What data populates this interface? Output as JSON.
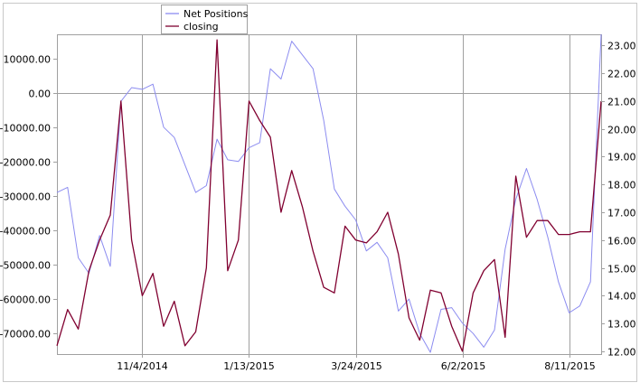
{
  "chart_data": {
    "type": "line",
    "title": "",
    "legend": {
      "placement": "top-left",
      "entries": [
        "Net Positions",
        "closing"
      ]
    },
    "colors": {
      "background": "#ffffff",
      "frame": "#a0a0a0",
      "grid": "#a0a0a0",
      "net_positions": "#8c8cf0",
      "closing": "#800030",
      "text": "#000000"
    },
    "grid": {
      "vertical": true,
      "horizontal_at_zero": true
    },
    "x_axis": {
      "type": "date",
      "range": [
        "2014-09-09",
        "2015-09-01"
      ],
      "ticks": [
        "11/4/2014",
        "1/13/2015",
        "3/24/2015",
        "6/2/2015",
        "8/11/2015"
      ],
      "tick_dates": [
        "2014-11-04",
        "2015-01-13",
        "2015-03-24",
        "2015-06-02",
        "2015-08-11"
      ]
    },
    "y_left": {
      "range": [
        -76000,
        17000
      ],
      "ticks": [
        -70000,
        -60000,
        -50000,
        -40000,
        -30000,
        -20000,
        -10000,
        0,
        10000
      ],
      "tick_labels": [
        "-70000.00",
        "-60000.00",
        "-50000.00",
        "-40000.00",
        "-30000.00",
        "-20000.00",
        "-10000.00",
        "0.00",
        "10000.00"
      ]
    },
    "y_right": {
      "range": [
        11.9,
        23.4
      ],
      "ticks": [
        12,
        13,
        14,
        15,
        16,
        17,
        18,
        19,
        20,
        21,
        22,
        23
      ],
      "tick_labels": [
        "12.00",
        "13.00",
        "14.00",
        "15.00",
        "16.00",
        "17.00",
        "18.00",
        "19.00",
        "20.00",
        "21.00",
        "22.00",
        "23.00"
      ]
    },
    "x": [
      "2014-09-09",
      "2014-09-16",
      "2014-09-23",
      "2014-09-30",
      "2014-10-07",
      "2014-10-14",
      "2014-10-21",
      "2014-10-28",
      "2014-11-04",
      "2014-11-11",
      "2014-11-18",
      "2014-11-25",
      "2014-12-02",
      "2014-12-09",
      "2014-12-16",
      "2014-12-23",
      "2014-12-30",
      "2015-01-06",
      "2015-01-13",
      "2015-01-20",
      "2015-01-27",
      "2015-02-03",
      "2015-02-10",
      "2015-02-17",
      "2015-02-24",
      "2015-03-03",
      "2015-03-10",
      "2015-03-17",
      "2015-03-24",
      "2015-03-31",
      "2015-04-07",
      "2015-04-14",
      "2015-04-21",
      "2015-04-28",
      "2015-05-05",
      "2015-05-12",
      "2015-05-19",
      "2015-05-26",
      "2015-06-02",
      "2015-06-09",
      "2015-06-16",
      "2015-06-23",
      "2015-06-30",
      "2015-07-07",
      "2015-07-14",
      "2015-07-21",
      "2015-07-28",
      "2015-08-04",
      "2015-08-11",
      "2015-08-18",
      "2015-08-25",
      "2015-09-01"
    ],
    "series": [
      {
        "name": "Net Positions",
        "axis": "left",
        "values": [
          -29000,
          -27500,
          -48000,
          -52500,
          -41500,
          -50500,
          -2500,
          1500,
          1000,
          2500,
          -10000,
          -13000,
          -21000,
          -29000,
          -27000,
          -13500,
          -19500,
          -20000,
          -16000,
          -14500,
          7000,
          4000,
          15000,
          11000,
          7000,
          -8000,
          -28000,
          -33000,
          -37000,
          -46000,
          -43500,
          -48000,
          -63500,
          -60000,
          -70000,
          -75500,
          -63000,
          -62500,
          -67000,
          -70000,
          -74000,
          -69000,
          -45500,
          -31000,
          -22000,
          -31000,
          -42000,
          -55000,
          -64000,
          -62000,
          -55000,
          17000
        ]
      },
      {
        "name": "closing",
        "axis": "right",
        "values": [
          12.2,
          13.5,
          12.8,
          14.9,
          16.0,
          16.9,
          21.0,
          16.0,
          14.0,
          14.8,
          12.9,
          13.8,
          12.2,
          12.7,
          15.0,
          23.2,
          14.9,
          16.0,
          21.0,
          20.3,
          19.7,
          17.0,
          18.5,
          17.2,
          15.6,
          14.3,
          14.1,
          16.5,
          16.0,
          15.9,
          16.3,
          17.0,
          15.5,
          13.2,
          12.4,
          14.2,
          14.1,
          12.9,
          12.0,
          14.1,
          14.9,
          15.3,
          12.5,
          18.3,
          16.1,
          16.7,
          16.7,
          16.2,
          16.2,
          16.3,
          16.3,
          21.0
        ]
      }
    ]
  }
}
